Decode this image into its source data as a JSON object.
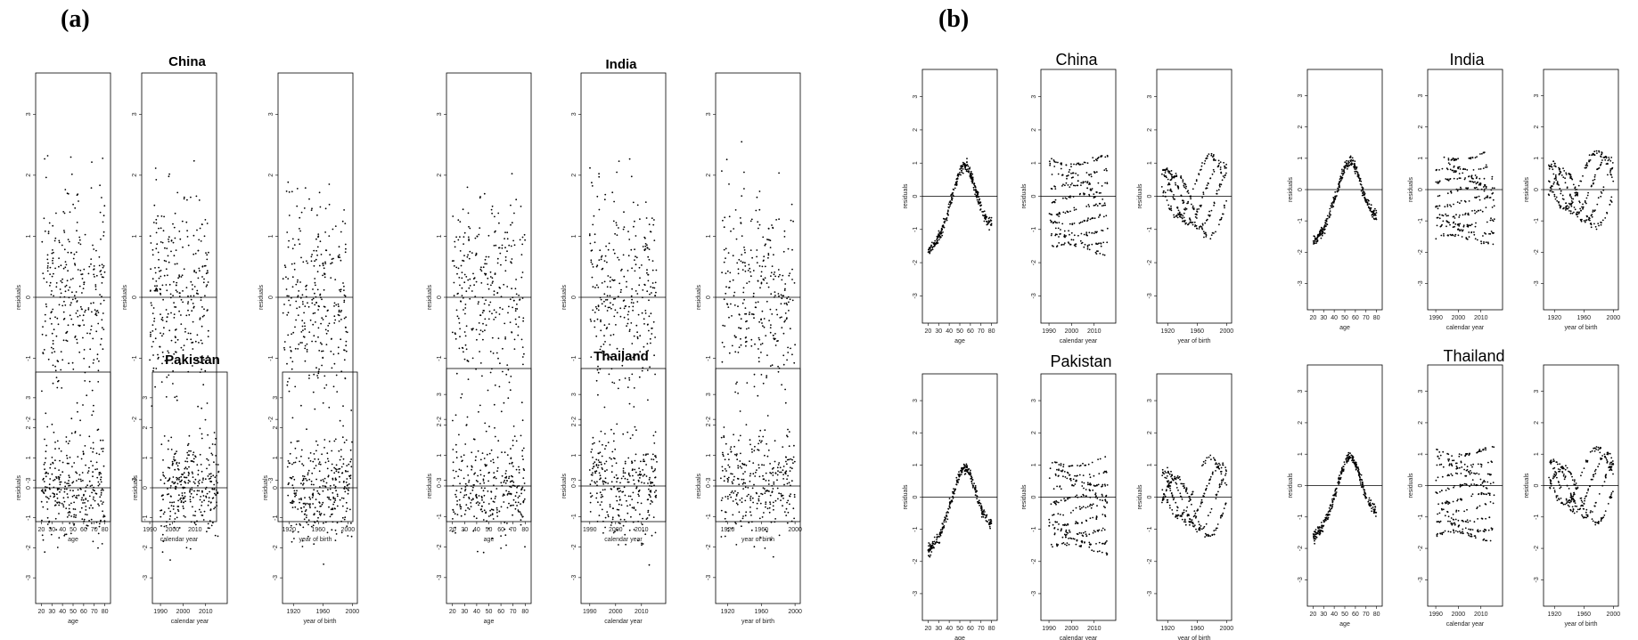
{
  "panel_labels": [
    "(a)",
    "(b)"
  ],
  "chart_data": [
    {
      "type": "scatter",
      "panel": "(a)",
      "country": "China",
      "ylabel": "residuals",
      "ylim": [
        -3.5,
        3.5
      ],
      "yticks": [
        "-3",
        "-2",
        "-1",
        "0",
        "1",
        "2",
        "3"
      ],
      "reference_line_y": 0,
      "grid": false,
      "subplots": [
        {
          "xlabel": "age",
          "xlim": [
            18,
            82
          ],
          "xticks": [
            "20",
            "30",
            "40",
            "50",
            "60",
            "70",
            "80"
          ]
        },
        {
          "xlabel": "calendar year",
          "xlim": [
            1988,
            2018
          ],
          "xticks": [
            "1990",
            "2000",
            "2010"
          ]
        },
        {
          "xlabel": "year of birth",
          "xlim": [
            1910,
            2002
          ],
          "xticks": [
            "1920",
            "1960",
            "2000"
          ]
        }
      ]
    },
    {
      "type": "scatter",
      "panel": "(a)",
      "country": "India",
      "ylabel": "residuals",
      "ylim": [
        -3.5,
        3.5
      ],
      "yticks": [
        "-3",
        "-2",
        "-1",
        "0",
        "1",
        "2",
        "3"
      ],
      "reference_line_y": 0,
      "grid": false,
      "subplots": [
        {
          "xlabel": "age",
          "xlim": [
            18,
            82
          ],
          "xticks": [
            "20",
            "30",
            "40",
            "50",
            "60",
            "70",
            "80"
          ]
        },
        {
          "xlabel": "calendar year",
          "xlim": [
            1988,
            2018
          ],
          "xticks": [
            "1990",
            "2000",
            "2010"
          ]
        },
        {
          "xlabel": "year of birth",
          "xlim": [
            1910,
            2002
          ],
          "xticks": [
            "1920",
            "1960",
            "2000"
          ]
        }
      ]
    },
    {
      "type": "scatter",
      "panel": "(a)",
      "country": "Pakistan",
      "ylabel": "residuals",
      "ylim": [
        -3.5,
        3.5
      ],
      "yticks": [
        "-3",
        "-2",
        "-1",
        "0",
        "1",
        "2",
        "3"
      ],
      "reference_line_y": 0,
      "grid": false,
      "subplots": [
        {
          "xlabel": "age",
          "xlim": [
            18,
            82
          ],
          "xticks": [
            "20",
            "30",
            "40",
            "50",
            "60",
            "70",
            "80"
          ]
        },
        {
          "xlabel": "calendar year",
          "xlim": [
            1988,
            2018
          ],
          "xticks": [
            "1990",
            "2000",
            "2010"
          ]
        },
        {
          "xlabel": "year of birth",
          "xlim": [
            1910,
            2002
          ],
          "xticks": [
            "1920",
            "1960",
            "2000"
          ]
        }
      ]
    },
    {
      "type": "scatter",
      "panel": "(a)",
      "country": "Thailand",
      "ylabel": "residuals",
      "ylim": [
        -3.5,
        3.5
      ],
      "yticks": [
        "-3",
        "-2",
        "-1",
        "0",
        "1",
        "2",
        "3"
      ],
      "reference_line_y": 0,
      "grid": false,
      "subplots": [
        {
          "xlabel": "age",
          "xlim": [
            18,
            82
          ],
          "xticks": [
            "20",
            "30",
            "40",
            "50",
            "60",
            "70",
            "80"
          ]
        },
        {
          "xlabel": "calendar year",
          "xlim": [
            1988,
            2018
          ],
          "xticks": [
            "1990",
            "2000",
            "2010"
          ]
        },
        {
          "xlabel": "year of birth",
          "xlim": [
            1910,
            2002
          ],
          "xticks": [
            "1920",
            "1960",
            "2000"
          ]
        }
      ]
    },
    {
      "type": "scatter",
      "panel": "(b)",
      "country": "China",
      "ylabel": "residuals",
      "ylim": [
        -3.5,
        3.5
      ],
      "yticks": [
        "-3",
        "-2",
        "-1",
        "0",
        "1",
        "2",
        "3"
      ],
      "reference_line_y": 0,
      "grid": false,
      "subplots": [
        {
          "xlabel": "age",
          "xlim": [
            18,
            82
          ],
          "xticks": [
            "20",
            "30",
            "40",
            "50",
            "60",
            "70",
            "80"
          ]
        },
        {
          "xlabel": "calendar year",
          "xlim": [
            1988,
            2018
          ],
          "xticks": [
            "1990",
            "2000",
            "2010"
          ]
        },
        {
          "xlabel": "year of birth",
          "xlim": [
            1910,
            2002
          ],
          "xticks": [
            "1920",
            "1960",
            "2000"
          ]
        }
      ]
    },
    {
      "type": "scatter",
      "panel": "(b)",
      "country": "India",
      "ylabel": "residuals",
      "ylim": [
        -3.5,
        3.5
      ],
      "yticks": [
        "-3",
        "-2",
        "-1",
        "0",
        "1",
        "2",
        "3"
      ],
      "reference_line_y": 0,
      "grid": false,
      "subplots": [
        {
          "xlabel": "age",
          "xlim": [
            18,
            82
          ],
          "xticks": [
            "20",
            "30",
            "40",
            "50",
            "60",
            "70",
            "80"
          ]
        },
        {
          "xlabel": "calendar year",
          "xlim": [
            1988,
            2018
          ],
          "xticks": [
            "1990",
            "2000",
            "2010"
          ]
        },
        {
          "xlabel": "year of birth",
          "xlim": [
            1910,
            2002
          ],
          "xticks": [
            "1920",
            "1960",
            "2000"
          ]
        }
      ]
    },
    {
      "type": "scatter",
      "panel": "(b)",
      "country": "Pakistan",
      "ylabel": "residuals",
      "ylim": [
        -3.5,
        3.5
      ],
      "yticks": [
        "-3",
        "-2",
        "-1",
        "0",
        "1",
        "2",
        "3"
      ],
      "reference_line_y": 0,
      "grid": false,
      "subplots": [
        {
          "xlabel": "age",
          "xlim": [
            18,
            82
          ],
          "xticks": [
            "20",
            "30",
            "40",
            "50",
            "60",
            "70",
            "80"
          ]
        },
        {
          "xlabel": "calendar year",
          "xlim": [
            1988,
            2018
          ],
          "xticks": [
            "1990",
            "2000",
            "2010"
          ]
        },
        {
          "xlabel": "year of birth",
          "xlim": [
            1910,
            2002
          ],
          "xticks": [
            "1920",
            "1960",
            "2000"
          ]
        }
      ]
    },
    {
      "type": "scatter",
      "panel": "(b)",
      "country": "Thailand",
      "ylabel": "residuals",
      "ylim": [
        -3.5,
        3.5
      ],
      "yticks": [
        "-3",
        "-2",
        "-1",
        "0",
        "1",
        "2",
        "3"
      ],
      "reference_line_y": 0,
      "grid": false,
      "subplots": [
        {
          "xlabel": "age",
          "xlim": [
            18,
            82
          ],
          "xticks": [
            "20",
            "30",
            "40",
            "50",
            "60",
            "70",
            "80"
          ]
        },
        {
          "xlabel": "calendar year",
          "xlim": [
            1988,
            2018
          ],
          "xticks": [
            "1990",
            "2000",
            "2010"
          ]
        },
        {
          "xlabel": "year of birth",
          "xlim": [
            1910,
            2002
          ],
          "xticks": [
            "1920",
            "1960",
            "2000"
          ]
        }
      ]
    }
  ]
}
